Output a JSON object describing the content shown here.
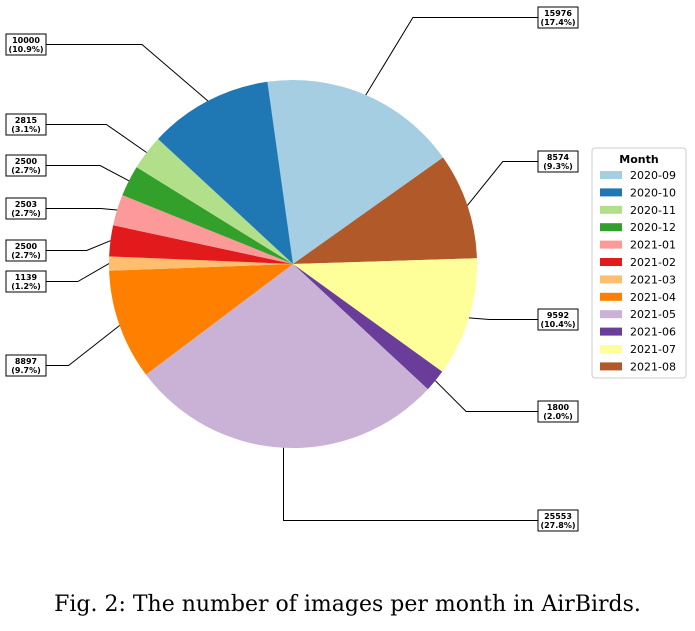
{
  "chart_data": {
    "type": "pie",
    "legend_title": "Month",
    "legend_placement": "right",
    "start_angle_deg": 98.0,
    "direction": "clockwise",
    "slices": [
      {
        "label": "2020-09",
        "value": 15976,
        "pct": "17.4%",
        "color": "#a6cee3"
      },
      {
        "label": "2021-08",
        "value": 8574,
        "pct": "9.3%",
        "color": "#b15928"
      },
      {
        "label": "2021-07",
        "value": 9592,
        "pct": "10.4%",
        "color": "#ffff99"
      },
      {
        "label": "2021-06",
        "value": 1800,
        "pct": "2.0%",
        "color": "#6a3d9a"
      },
      {
        "label": "2021-05",
        "value": 25553,
        "pct": "27.8%",
        "color": "#cab2d6"
      },
      {
        "label": "2021-04",
        "value": 8897,
        "pct": "9.7%",
        "color": "#ff7f00"
      },
      {
        "label": "2021-03",
        "value": 1139,
        "pct": "1.2%",
        "color": "#fdbf6f"
      },
      {
        "label": "2021-02",
        "value": 2500,
        "pct": "2.7%",
        "color": "#e31a1c"
      },
      {
        "label": "2021-01",
        "value": 2503,
        "pct": "2.7%",
        "color": "#fb9a99"
      },
      {
        "label": "2020-12",
        "value": 2500,
        "pct": "2.7%",
        "color": "#33a02c"
      },
      {
        "label": "2020-11",
        "value": 2815,
        "pct": "3.1%",
        "color": "#b2df8a"
      },
      {
        "label": "2020-10",
        "value": 10000,
        "pct": "10.9%",
        "color": "#1f78b4"
      }
    ],
    "legend_order": [
      "2020-09",
      "2020-10",
      "2020-11",
      "2020-12",
      "2021-01",
      "2021-02",
      "2021-03",
      "2021-04",
      "2021-05",
      "2021-06",
      "2021-07",
      "2021-08"
    ]
  },
  "caption": "Fig. 2: The number of images per month in AirBirds."
}
